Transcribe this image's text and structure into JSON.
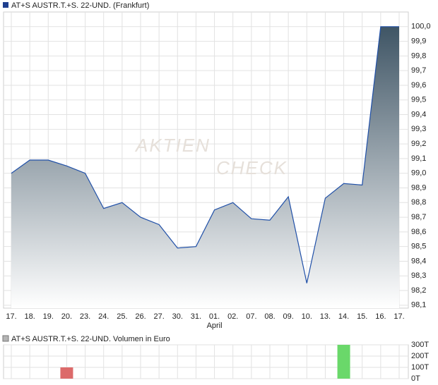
{
  "chart_data": [
    {
      "type": "area",
      "title": "AT+S AUSTR.T.+S. 22-UND. (Frankfurt)",
      "legend_color": "#1f3f8f",
      "watermark": [
        "AKTIEN",
        "CHECK"
      ],
      "categories": [
        "17.",
        "18.",
        "19.",
        "20.",
        "23.",
        "24.",
        "25.",
        "26.",
        "27.",
        "30.",
        "31.",
        "01.",
        "02.",
        "07.",
        "08.",
        "09.",
        "10.",
        "13.",
        "14.",
        "15.",
        "16.",
        "17."
      ],
      "annotations": [
        {
          "text": "April",
          "at": "01."
        }
      ],
      "values": [
        99.0,
        99.09,
        99.09,
        99.05,
        99.0,
        98.76,
        98.8,
        98.7,
        98.65,
        98.49,
        98.5,
        98.75,
        98.8,
        98.69,
        98.68,
        98.84,
        98.25,
        98.83,
        98.93,
        98.92,
        100.0,
        100.0
      ],
      "line_color": "#2050a8",
      "fill_top": "#3f5565",
      "fill_bottom": "#ffffff",
      "ylim": [
        98.08,
        100.1
      ],
      "grid": true,
      "yticks": [
        {
          "value": 98.1,
          "label": "98,1"
        },
        {
          "value": 98.2,
          "label": "98,2"
        },
        {
          "value": 98.3,
          "label": "98,3"
        },
        {
          "value": 98.4,
          "label": "98,4"
        },
        {
          "value": 98.5,
          "label": "98,5"
        },
        {
          "value": 98.6,
          "label": "98,6"
        },
        {
          "value": 98.7,
          "label": "98,7"
        },
        {
          "value": 98.8,
          "label": "98,8"
        },
        {
          "value": 98.9,
          "label": "98,9"
        },
        {
          "value": 99.0,
          "label": "99,0"
        },
        {
          "value": 99.1,
          "label": "99,1"
        },
        {
          "value": 99.2,
          "label": "99,2"
        },
        {
          "value": 99.3,
          "label": "99,3"
        },
        {
          "value": 99.4,
          "label": "99,4"
        },
        {
          "value": 99.5,
          "label": "99,5"
        },
        {
          "value": 99.6,
          "label": "99,6"
        },
        {
          "value": 99.7,
          "label": "99,7"
        },
        {
          "value": 99.8,
          "label": "99,8"
        },
        {
          "value": 99.9,
          "label": "99,9"
        },
        {
          "value": 100.0,
          "label": "100,0"
        }
      ]
    },
    {
      "type": "bar",
      "title": "AT+S AUSTR.T.+S. 22-UND. Volumen in Euro",
      "legend_color": "#b4b4b4",
      "values": [
        0,
        0,
        0,
        100,
        0,
        0,
        0,
        0,
        0,
        0,
        0,
        0,
        0,
        0,
        0,
        0,
        0,
        0,
        300,
        0,
        0,
        0
      ],
      "colors": [
        "#999",
        "#999",
        "#999",
        "#dc6a6a",
        "#999",
        "#999",
        "#999",
        "#999",
        "#999",
        "#999",
        "#999",
        "#999",
        "#999",
        "#999",
        "#999",
        "#999",
        "#999",
        "#999",
        "#6ad86a",
        "#999",
        "#999",
        "#999"
      ],
      "ylim": [
        0,
        300
      ],
      "grid": true,
      "yticks": [
        {
          "value": 0,
          "label": "0T"
        },
        {
          "value": 100,
          "label": "100T"
        },
        {
          "value": 200,
          "label": "200T"
        },
        {
          "value": 300,
          "label": "300T"
        }
      ]
    }
  ]
}
